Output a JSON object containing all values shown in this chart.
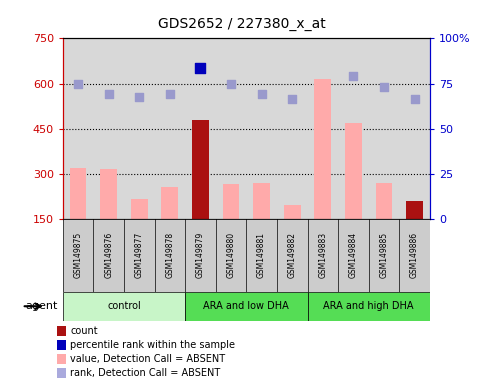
{
  "title": "GDS2652 / 227380_x_at",
  "samples": [
    "GSM149875",
    "GSM149876",
    "GSM149877",
    "GSM149878",
    "GSM149879",
    "GSM149880",
    "GSM149881",
    "GSM149882",
    "GSM149883",
    "GSM149884",
    "GSM149885",
    "GSM149886"
  ],
  "groups": [
    {
      "label": "control",
      "start": 0,
      "end": 4,
      "color": "#c8f5c8"
    },
    {
      "label": "ARA and low DHA",
      "start": 4,
      "end": 8,
      "color": "#55dd55"
    },
    {
      "label": "ARA and high DHA",
      "start": 8,
      "end": 12,
      "color": "#55dd55"
    }
  ],
  "bar_values": [
    320,
    315,
    215,
    255,
    480,
    265,
    268,
    195,
    615,
    470,
    268,
    210
  ],
  "bar_colors": [
    "#ffaaaa",
    "#ffaaaa",
    "#ffaaaa",
    "#ffaaaa",
    "#aa1111",
    "#ffaaaa",
    "#ffaaaa",
    "#ffaaaa",
    "#ffaaaa",
    "#ffaaaa",
    "#ffaaaa",
    "#aa1111"
  ],
  "rank_dots": [
    600,
    565,
    555,
    565,
    650,
    600,
    565,
    548,
    null,
    625,
    590,
    548
  ],
  "rank_dot_colors": [
    "#9999cc",
    "#9999cc",
    "#9999cc",
    "#9999cc",
    "#0000bb",
    "#9999cc",
    "#9999cc",
    "#9999cc",
    "#9999cc",
    "#9999cc",
    "#9999cc",
    "#9999cc"
  ],
  "rank_dot_sizes": [
    40,
    40,
    40,
    40,
    60,
    40,
    40,
    40,
    40,
    40,
    40,
    40
  ],
  "ylim_left": [
    150,
    750
  ],
  "ylim_right": [
    0,
    100
  ],
  "yticks_left": [
    150,
    300,
    450,
    600,
    750
  ],
  "yticks_right": [
    0,
    25,
    50,
    75,
    100
  ],
  "hlines": [
    300,
    450,
    600
  ],
  "left_axis_color": "#cc0000",
  "right_axis_color": "#0000cc",
  "legend": [
    {
      "color": "#aa1111",
      "label": "count"
    },
    {
      "color": "#0000bb",
      "label": "percentile rank within the sample"
    },
    {
      "color": "#ffaaaa",
      "label": "value, Detection Call = ABSENT"
    },
    {
      "color": "#aaaadd",
      "label": "rank, Detection Call = ABSENT"
    }
  ],
  "plot_bg": "#d8d8d8",
  "label_box_bg": "#cccccc",
  "fig_bg": "#ffffff"
}
